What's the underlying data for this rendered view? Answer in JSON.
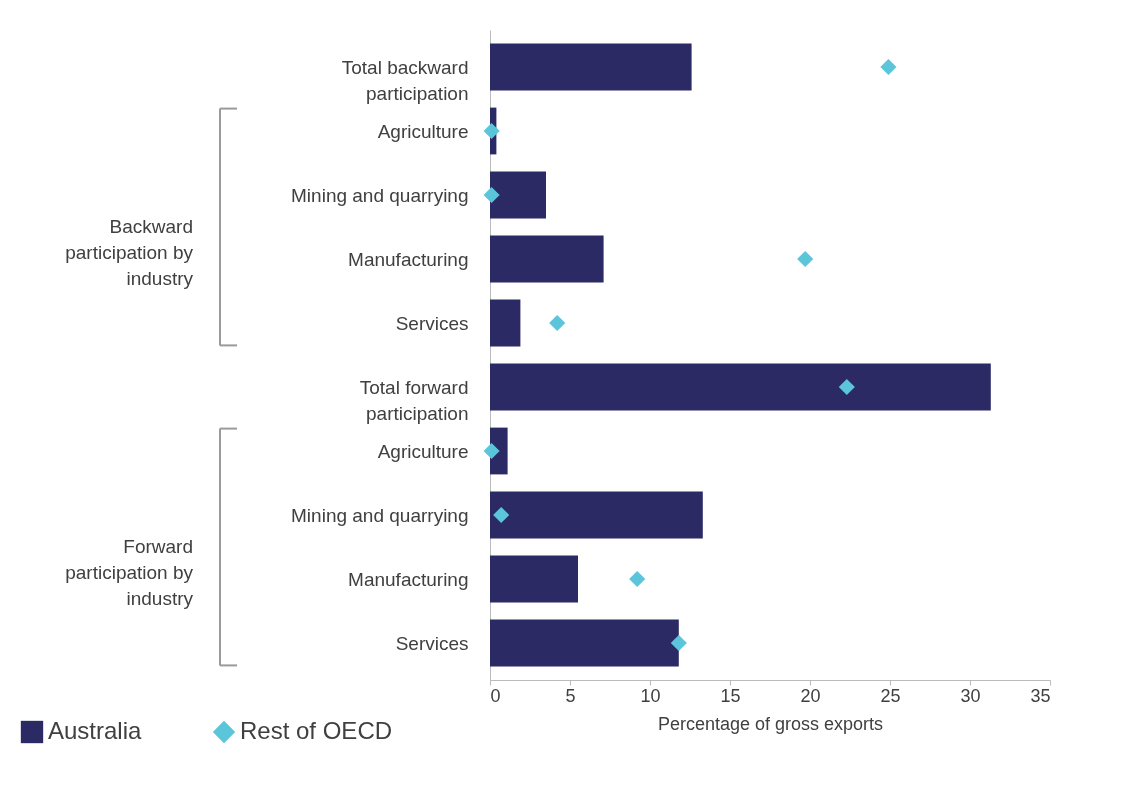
{
  "chart_data": {
    "type": "bar",
    "orientation": "horizontal",
    "xlabel": "Percentage of gross exports",
    "categories": [
      "Total backward participation",
      "Agriculture",
      "Mining and quarrying",
      "Manufacturing",
      "Services",
      "Total forward participation",
      "Agriculture",
      "Mining and quarrying",
      "Manufacturing",
      "Services"
    ],
    "series": [
      {
        "name": "Australia",
        "type": "bar",
        "color": "#2b2a64",
        "values": [
          12.6,
          0.4,
          3.5,
          7.1,
          1.9,
          31.3,
          1.1,
          13.3,
          5.5,
          11.8
        ]
      },
      {
        "name": "Rest of OECD",
        "type": "scatter",
        "color": "#5bc5d9",
        "values": [
          24.9,
          0.1,
          0.1,
          19.7,
          4.2,
          22.3,
          0.1,
          0.7,
          9.2,
          11.8
        ]
      }
    ],
    "xlim": [
      0,
      35
    ],
    "xticks": [
      0,
      5,
      10,
      15,
      20,
      25,
      30,
      35
    ],
    "grid": false,
    "legend": "bottom left",
    "marker": "diamond",
    "annotations": [
      "Backward participation by industry",
      "Forward participation by industry"
    ]
  }
}
